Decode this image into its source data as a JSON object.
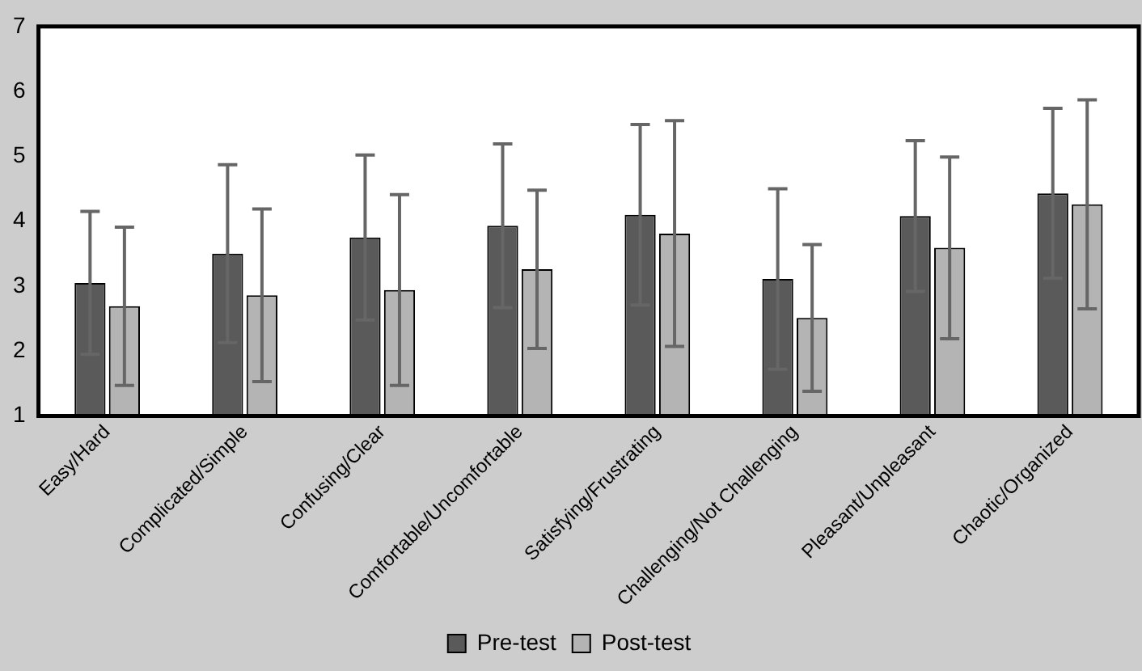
{
  "chart_data": {
    "type": "bar",
    "categories": [
      "Easy/Hard",
      "Complicated/Simple",
      "Confusing/Clear",
      "Comfortable/Uncomfortable",
      "Satisfying/Frustrating",
      "Challenging/Not Challenging",
      "Pleasant/Unpleasant",
      "Chaotic/Organized"
    ],
    "series": [
      {
        "name": "Pre-test",
        "color": "#5a5a5a",
        "values": [
          3.05,
          3.5,
          3.75,
          3.93,
          4.1,
          3.11,
          4.08,
          4.43
        ],
        "errors": [
          1.1,
          1.37,
          1.27,
          1.26,
          1.39,
          1.39,
          1.16,
          1.31
        ]
      },
      {
        "name": "Post-test",
        "color": "#b4b4b4",
        "values": [
          2.69,
          2.86,
          2.94,
          3.26,
          3.81,
          2.51,
          3.59,
          4.26
        ],
        "errors": [
          1.22,
          1.33,
          1.47,
          1.22,
          1.74,
          1.13,
          1.4,
          1.61
        ]
      }
    ],
    "ylim": [
      1,
      7
    ],
    "yticks": [
      1,
      2,
      3,
      4,
      5,
      6,
      7
    ],
    "grid": false,
    "legend": "bottom"
  }
}
